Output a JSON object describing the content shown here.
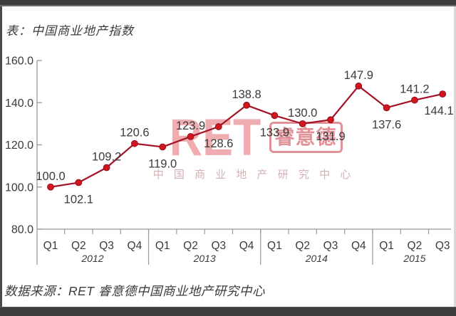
{
  "page": {
    "title": "表：中国商业地产指数",
    "source_note": "数据来源：RET 睿意德中国商业地产研究中心"
  },
  "watermark": {
    "logo": "RET",
    "logo_seal": "睿意德",
    "subtitle": "中 国 商 业 地 产 研 究 中 心"
  },
  "chart_data": {
    "type": "line",
    "title": "中国商业地产指数",
    "categories": [
      "Q1",
      "Q2",
      "Q3",
      "Q4",
      "Q1",
      "Q2",
      "Q3",
      "Q4",
      "Q1",
      "Q2",
      "Q3",
      "Q4",
      "Q1",
      "Q2",
      "Q3"
    ],
    "year_groups": [
      {
        "label": "2012",
        "count": 4
      },
      {
        "label": "2013",
        "count": 4
      },
      {
        "label": "2014",
        "count": 4
      },
      {
        "label": "2015",
        "count": 3
      }
    ],
    "series": [
      {
        "name": "中国商业地产指数",
        "values": [
          100.0,
          102.1,
          109.2,
          120.6,
          119.0,
          123.9,
          128.6,
          138.8,
          133.9,
          130.0,
          131.9,
          147.9,
          137.6,
          141.2,
          144.1
        ]
      }
    ],
    "value_labels": [
      "100.0",
      "102.1",
      "109.2",
      "120.6",
      "119.0",
      "123.9",
      "128.6",
      "138.8",
      "133.9",
      "130.0",
      "131.9",
      "147.9",
      "137.6",
      "141.2",
      "144.1"
    ],
    "label_sides": [
      "above",
      "below",
      "above",
      "above",
      "below",
      "above",
      "below",
      "above",
      "below",
      "above",
      "below",
      "above",
      "below",
      "above",
      "below"
    ],
    "y_ticks": [
      {
        "value": 160,
        "label": "160.0"
      },
      {
        "value": 140,
        "label": "140.0"
      },
      {
        "value": 120,
        "label": "120.0"
      },
      {
        "value": 100,
        "label": "100.0"
      },
      {
        "value": 80,
        "label": "80.0"
      }
    ],
    "ylim": [
      80,
      160
    ],
    "grid": false,
    "legend": "none",
    "colors": {
      "line": "#a31226",
      "marker": "#d2161e",
      "marker_stroke": "#8e0f1e",
      "text": "#3a3a3a",
      "axis": "#999999",
      "frame_bar": "#3d3d3d",
      "edge_strip": "#4a4a4a",
      "watermark_logo": "rgba(218,60,72,0.42)",
      "watermark_seal": "rgba(195,35,48,0.50)",
      "watermark_sub": "rgba(186,128,134,0.62)"
    }
  }
}
